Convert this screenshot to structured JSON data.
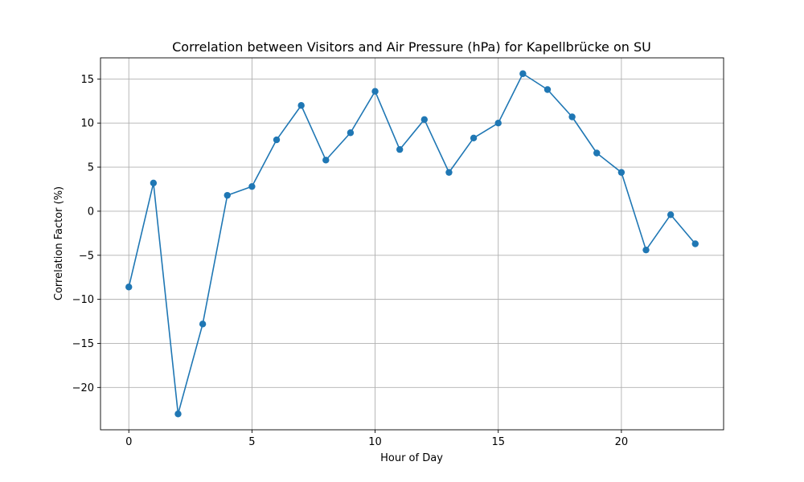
{
  "chart_data": {
    "type": "line",
    "title": "Correlation between Visitors and Air Pressure (hPa) for Kapellbrücke on SU",
    "xlabel": "Hour of Day",
    "ylabel": "Correlation Factor (%)",
    "xlim": [
      -1.15,
      24.15
    ],
    "ylim": [
      -24.8,
      17.4
    ],
    "xticks": [
      0,
      5,
      10,
      15,
      20
    ],
    "yticks": [
      -20,
      -15,
      -10,
      -5,
      0,
      5,
      10,
      15
    ],
    "xtick_labels": [
      "0",
      "5",
      "10",
      "15",
      "20"
    ],
    "ytick_labels": [
      "−20",
      "−15",
      "−10",
      "−5",
      "0",
      "5",
      "10",
      "15"
    ],
    "grid": true,
    "line_color": "#1f77b4",
    "marker": "circle",
    "series": [
      {
        "x": [
          0,
          1,
          2,
          3,
          4,
          5,
          6,
          7,
          8,
          9,
          10,
          11,
          12,
          13,
          14,
          15,
          16,
          17,
          18,
          19,
          20,
          21,
          22,
          23
        ],
        "values": [
          -8.6,
          3.2,
          -23.0,
          -12.8,
          1.8,
          2.8,
          8.1,
          12.0,
          5.8,
          8.9,
          13.6,
          7.0,
          10.4,
          4.4,
          8.3,
          10.0,
          15.6,
          13.8,
          10.7,
          6.6,
          4.4,
          -4.4,
          -0.4,
          -3.7
        ]
      }
    ]
  }
}
